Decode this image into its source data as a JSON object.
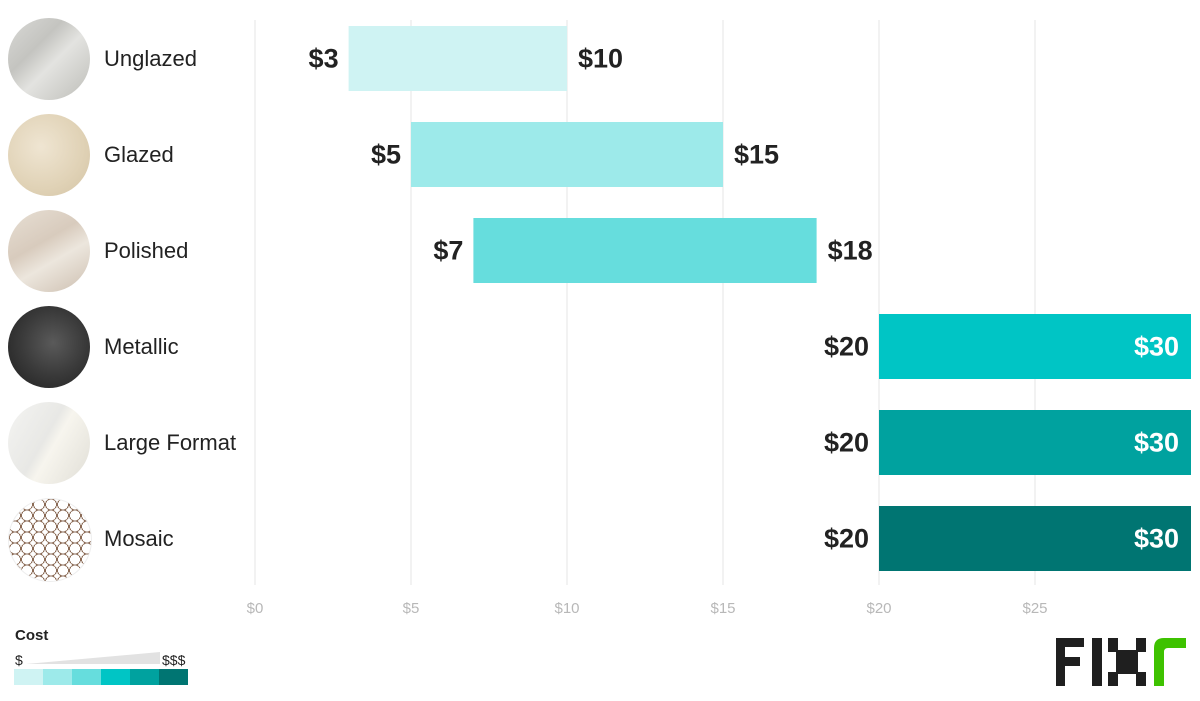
{
  "chart_data": {
    "type": "bar",
    "subtype": "floating-range",
    "title": "",
    "xlabel": "",
    "ylabel": "",
    "xlim": [
      0,
      30
    ],
    "x_ticks": [
      0,
      5,
      10,
      15,
      20,
      25
    ],
    "x_tick_labels": [
      "$0",
      "$5",
      "$10",
      "$15",
      "$20",
      "$25"
    ],
    "grid": "vertical",
    "categories": [
      "Unglazed",
      "Glazed",
      "Polished",
      "Metallic",
      "Large Format",
      "Mosaic"
    ],
    "low": [
      3,
      5,
      7,
      20,
      20,
      20
    ],
    "high": [
      10,
      15,
      18,
      30,
      30,
      30
    ],
    "low_labels": [
      "$3",
      "$5",
      "$7",
      "$20",
      "$20",
      "$20"
    ],
    "high_labels": [
      "$10",
      "$15",
      "$18",
      "$30",
      "$30",
      "$30"
    ],
    "bar_colors": [
      "#cff3f3",
      "#9deaea",
      "#66dddd",
      "#00c5c5",
      "#00a29f",
      "#007572"
    ],
    "swatch_kinds": [
      "gray-stone",
      "cream-stone",
      "beige-marble",
      "dark-metal",
      "white-marble",
      "hex-mosaic"
    ]
  },
  "legend": {
    "title": "Cost",
    "low_label": "$",
    "high_label": "$$$",
    "colors": [
      "#cff3f3",
      "#9deaea",
      "#66dddd",
      "#00c5c5",
      "#00a29f",
      "#007572"
    ]
  },
  "brand": {
    "name": "FIXR",
    "text_color": "#1f1f1f",
    "accent_color": "#3ec200"
  }
}
